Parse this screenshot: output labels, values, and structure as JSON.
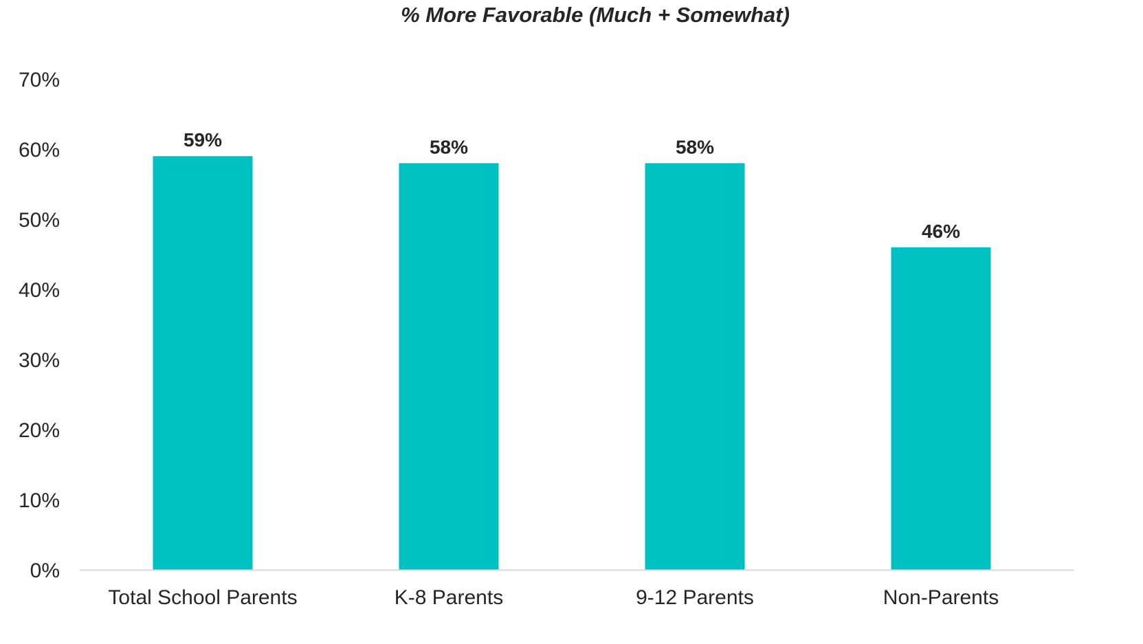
{
  "chart_data": {
    "type": "bar",
    "title": "% More Favorable (Much + Somewhat)",
    "categories": [
      "Total School Parents",
      "K-8 Parents",
      "9-12 Parents",
      "Non-Parents"
    ],
    "values": [
      59,
      58,
      58,
      46
    ],
    "data_labels": [
      "59%",
      "58%",
      "58%",
      "46%"
    ],
    "xlabel": "",
    "ylabel": "",
    "ylim": [
      0,
      70
    ],
    "y_ticks": [
      0,
      10,
      20,
      30,
      40,
      50,
      60,
      70
    ],
    "y_tick_labels": [
      "0%",
      "10%",
      "20%",
      "30%",
      "40%",
      "50%",
      "60%",
      "70%"
    ],
    "grid": false,
    "legend": "none",
    "colors": {
      "bar": "#00C1C1",
      "axis": "#D9D9D9",
      "text": "#262626"
    }
  }
}
